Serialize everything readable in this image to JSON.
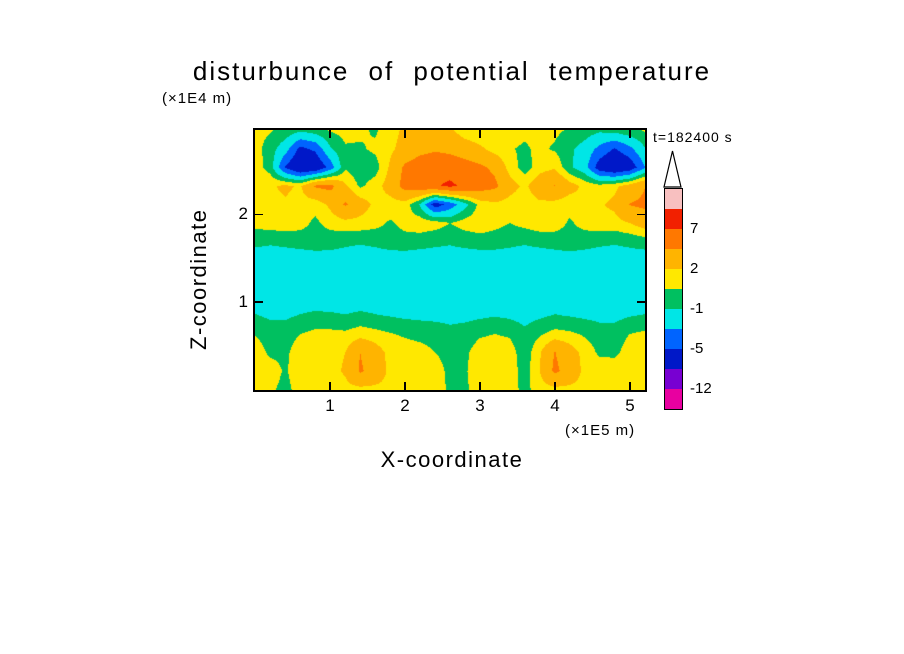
{
  "chart_data": {
    "type": "contour",
    "title": "disturbunce of potential temperature",
    "y_unit_label": "(×1E4 m)",
    "x_unit_label": "(×1E5 m)",
    "x_axis_label": "X-coordinate",
    "y_axis_label": "Z-coordinate",
    "time_label": "t=182400 s",
    "x_range": [
      0,
      5.2
    ],
    "z_range": [
      0,
      2.96
    ],
    "x_ticks": [
      "1",
      "2",
      "3",
      "4",
      "5"
    ],
    "z_ticks": [
      "1",
      "2"
    ],
    "levels": [
      -12,
      -8,
      -5,
      -3,
      -1,
      0.5,
      2,
      4.5,
      7,
      9
    ],
    "palette": [
      "#e800a0",
      "#7800d2",
      "#0018c8",
      "#0064ff",
      "#00e6e6",
      "#00c060",
      "#ffe800",
      "#ffb400",
      "#ff7800",
      "#f22000",
      "#f8c0c0"
    ],
    "colorbar_labels": [
      {
        "text": "7",
        "boundary": 2
      },
      {
        "text": "2",
        "boundary": 4
      },
      {
        "text": "-1",
        "boundary": 6
      },
      {
        "text": "-5",
        "boundary": 8
      },
      {
        "text": "-12",
        "boundary": 10
      }
    ],
    "grid": {
      "nx": 27,
      "nz": 15,
      "note": "values[row][col], row 0 = bottom (z=0), units match colorbar levels",
      "values": [
        [
          1.5,
          0.8,
          0.0,
          1.2,
          1.5,
          1.5,
          1.5,
          1.5,
          1.5,
          1.5,
          1.5,
          1.5,
          1.3,
          0.2,
          0.2,
          1.3,
          1.5,
          1.2,
          0.0,
          1.3,
          1.5,
          1.5,
          1.5,
          1.5,
          1.5,
          1.5,
          1.5
        ],
        [
          1.5,
          1.2,
          0.3,
          1.5,
          1.5,
          1.5,
          2.2,
          4.8,
          3.5,
          1.5,
          1.5,
          1.5,
          1.2,
          0.1,
          0.3,
          1.5,
          1.5,
          1.4,
          -0.3,
          2.0,
          5.0,
          3.5,
          1.5,
          1.5,
          1.5,
          1.5,
          1.5
        ],
        [
          1.2,
          0.2,
          0.2,
          1.3,
          1.5,
          1.5,
          2.0,
          4.5,
          3.0,
          1.4,
          1.2,
          1.0,
          0.5,
          0.0,
          0.2,
          1.2,
          1.4,
          1.2,
          -0.4,
          1.8,
          4.6,
          3.0,
          1.4,
          0.2,
          0.1,
          1.2,
          1.5
        ],
        [
          0.4,
          -0.1,
          -0.1,
          0.5,
          0.9,
          0.9,
          0.8,
          1.3,
          1.0,
          0.6,
          0.3,
          0.1,
          0.0,
          -0.4,
          -0.2,
          0.3,
          0.5,
          0.3,
          -0.6,
          0.3,
          1.0,
          0.8,
          0.3,
          -0.2,
          -0.2,
          0.5,
          0.8
        ],
        [
          -0.9,
          -1.3,
          -1.3,
          -0.9,
          -0.6,
          -0.7,
          -0.9,
          -0.6,
          -0.9,
          -1.1,
          -1.3,
          -1.4,
          -1.5,
          -1.6,
          -1.5,
          -1.3,
          -1.1,
          -1.3,
          -1.6,
          -1.3,
          -0.9,
          -1.1,
          -1.3,
          -1.5,
          -1.5,
          -1.1,
          -0.9
        ],
        [
          -2.2,
          -2.3,
          -2.4,
          -2.3,
          -2.2,
          -2.3,
          -2.4,
          -2.3,
          -2.2,
          -2.3,
          -2.4,
          -2.4,
          -2.3,
          -2.4,
          -2.4,
          -2.3,
          -2.2,
          -2.3,
          -2.4,
          -2.3,
          -2.2,
          -2.3,
          -2.4,
          -2.3,
          -2.2,
          -2.3,
          -2.3
        ],
        [
          -2.5,
          -2.5,
          -2.6,
          -2.5,
          -2.5,
          -2.6,
          -2.5,
          -2.5,
          -2.6,
          -2.5,
          -2.5,
          -2.6,
          -2.5,
          -2.5,
          -2.6,
          -2.5,
          -2.5,
          -2.6,
          -2.5,
          -2.5,
          -2.6,
          -2.5,
          -2.5,
          -2.6,
          -2.5,
          -2.5,
          -2.5
        ],
        [
          -1.9,
          -1.8,
          -1.9,
          -2.0,
          -1.9,
          -1.8,
          -1.9,
          -2.0,
          -1.9,
          -1.8,
          -1.9,
          -2.0,
          -1.9,
          -1.8,
          -1.9,
          -2.0,
          -1.9,
          -1.8,
          -1.9,
          -2.0,
          -1.9,
          -1.8,
          -1.9,
          -2.0,
          -1.9,
          -1.8,
          -1.9
        ],
        [
          -0.6,
          -0.8,
          -0.6,
          -0.3,
          -0.1,
          -0.3,
          -0.6,
          -0.8,
          -0.6,
          -0.3,
          -0.1,
          -0.3,
          -0.6,
          -0.8,
          -0.5,
          -0.2,
          -0.3,
          -0.6,
          -0.8,
          -0.5,
          -0.3,
          -0.1,
          -0.3,
          -0.6,
          -0.8,
          -0.6,
          -0.3
        ],
        [
          1.0,
          1.3,
          1.4,
          1.0,
          0.2,
          1.0,
          1.4,
          1.4,
          1.0,
          0.3,
          1.0,
          1.4,
          1.2,
          0.5,
          1.2,
          1.4,
          1.0,
          0.5,
          1.0,
          1.4,
          1.2,
          0.3,
          1.0,
          1.4,
          1.4,
          2.0,
          3.0
        ],
        [
          1.4,
          1.6,
          1.8,
          1.3,
          1.0,
          2.4,
          4.8,
          3.0,
          1.6,
          1.3,
          1.3,
          -1.2,
          -6.2,
          -4.2,
          -1.6,
          1.0,
          1.6,
          1.3,
          1.0,
          1.6,
          1.3,
          1.0,
          1.6,
          1.8,
          2.4,
          4.6,
          5.0
        ],
        [
          1.6,
          1.8,
          2.3,
          1.8,
          4.8,
          5.2,
          2.3,
          0.2,
          1.3,
          2.8,
          5.5,
          6.0,
          6.8,
          7.4,
          6.6,
          5.8,
          5.0,
          2.8,
          1.6,
          3.4,
          4.6,
          2.8,
          1.6,
          1.0,
          1.6,
          2.8,
          4.4
        ],
        [
          1.3,
          -0.2,
          -5.2,
          -7.6,
          -7.2,
          -4.2,
          0.3,
          -0.7,
          -0.2,
          2.3,
          5.0,
          5.8,
          6.3,
          6.1,
          5.6,
          5.0,
          4.0,
          1.3,
          -0.2,
          1.3,
          1.8,
          -0.7,
          -2.2,
          -6.2,
          -7.6,
          -6.6,
          -3.2
        ],
        [
          1.0,
          -0.2,
          -2.2,
          -5.6,
          -4.6,
          -1.2,
          0.3,
          0.3,
          0.8,
          1.6,
          2.8,
          3.8,
          4.2,
          3.9,
          3.2,
          2.4,
          1.3,
          0.6,
          0.3,
          0.8,
          0.3,
          -0.7,
          -1.7,
          -3.6,
          -5.2,
          -3.6,
          -1.2
        ],
        [
          1.0,
          0.6,
          0.1,
          -0.7,
          -0.2,
          0.6,
          1.0,
          0.8,
          0.3,
          1.3,
          2.4,
          3.6,
          4.2,
          2.4,
          1.0,
          0.6,
          0.8,
          1.0,
          0.8,
          1.0,
          0.8,
          0.3,
          -0.2,
          -0.7,
          -0.4,
          0.1,
          0.6
        ]
      ]
    }
  }
}
